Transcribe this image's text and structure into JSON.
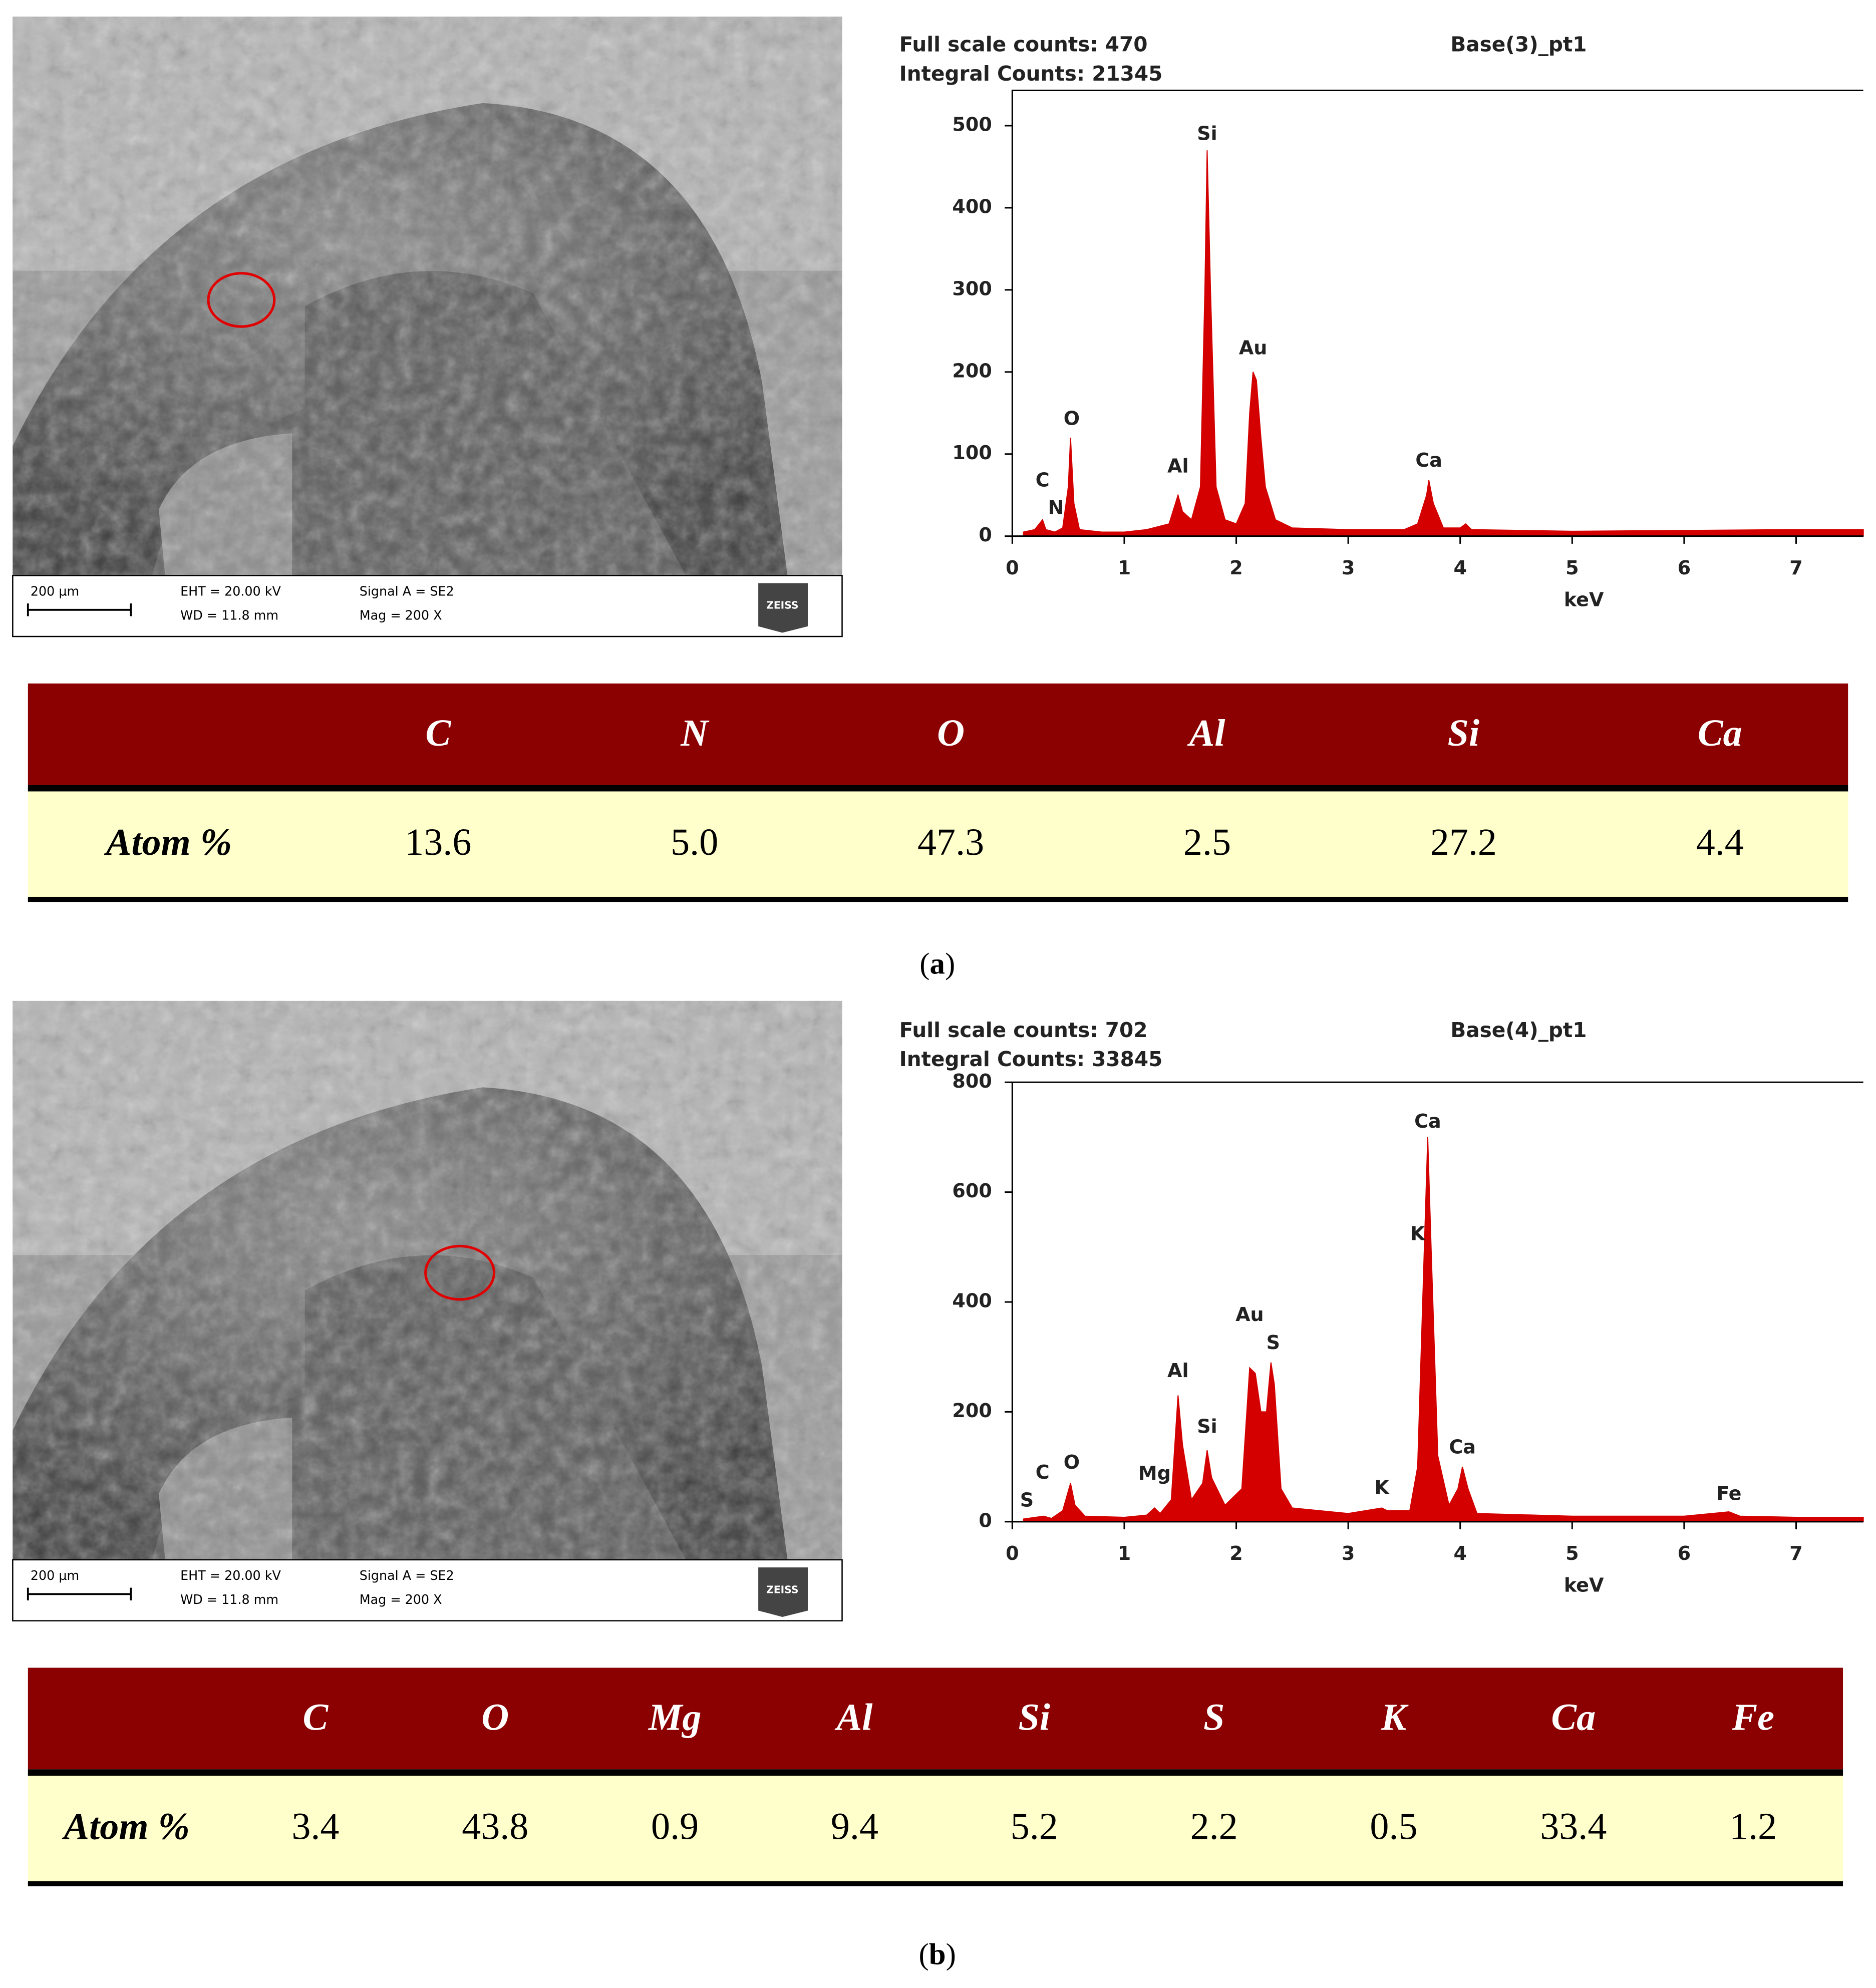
{
  "panels": [
    {
      "sem": {
        "scale": "200 µm",
        "eht": "EHT = 20.00 kV",
        "wd": "WD = 11.8 mm",
        "signal": "Signal A = SE2",
        "mag": "Mag =   200 X",
        "logo": "ZEISS"
      },
      "table": {
        "header": [
          "C",
          "N",
          "O",
          "Al",
          "Si",
          "Ca"
        ],
        "row_label": "Atom %",
        "row": [
          "13.6",
          "5.0",
          "47.3",
          "2.5",
          "27.2",
          "4.4"
        ]
      },
      "caption": {
        "open": "(",
        "letter": "a",
        "close": ")"
      }
    },
    {
      "sem": {
        "scale": "200 µm",
        "eht": "EHT = 20.00 kV",
        "wd": "WD = 11.8 mm",
        "signal": "Signal A = SE2",
        "mag": "Mag =   200 X",
        "logo": "ZEISS"
      },
      "table": {
        "header": [
          "C",
          "O",
          "Mg",
          "Al",
          "Si",
          "S",
          "K",
          "Ca",
          "Fe"
        ],
        "row_label": "Atom %",
        "row": [
          "3.4",
          "43.8",
          "0.9",
          "9.4",
          "5.2",
          "2.2",
          "0.5",
          "33.4",
          "1.2"
        ]
      },
      "caption": {
        "open": "(",
        "letter": "b",
        "close": ")"
      }
    }
  ],
  "chart_data": [
    {
      "type": "area",
      "title": "Base(3)_pt1",
      "subtitle": [
        "Full scale counts: 470",
        "Integral Counts: 21345"
      ],
      "xlabel": "keV",
      "color": "#d40000",
      "x": [
        0.1,
        0.2,
        0.27,
        0.3,
        0.38,
        0.45,
        0.5,
        0.52,
        0.55,
        0.6,
        0.8,
        1.0,
        1.2,
        1.4,
        1.48,
        1.52,
        1.6,
        1.68,
        1.72,
        1.74,
        1.77,
        1.82,
        1.9,
        2.0,
        2.08,
        2.12,
        2.15,
        2.18,
        2.22,
        2.26,
        2.35,
        2.5,
        3.0,
        3.5,
        3.62,
        3.7,
        3.72,
        3.76,
        3.85,
        4.0,
        4.05,
        4.1,
        5.0,
        6.0,
        7.0,
        7.6
      ],
      "values": [
        5,
        8,
        20,
        8,
        5,
        10,
        60,
        120,
        40,
        8,
        5,
        5,
        8,
        15,
        50,
        30,
        20,
        60,
        300,
        470,
        300,
        60,
        20,
        15,
        40,
        150,
        200,
        190,
        120,
        60,
        20,
        10,
        8,
        8,
        15,
        50,
        68,
        40,
        10,
        10,
        15,
        8,
        6,
        7,
        8,
        8
      ],
      "xlim": [
        0,
        7.6
      ],
      "ylim": [
        0,
        543
      ],
      "xticks": [
        0,
        1,
        2,
        3,
        4,
        5,
        6,
        7
      ],
      "yticks": [
        0,
        100,
        200,
        300,
        400,
        500
      ],
      "annotations": [
        {
          "text": "Si",
          "x": 1.74,
          "y": 489
        },
        {
          "text": "Au",
          "x": 2.15,
          "y": 228
        },
        {
          "text": "O",
          "x": 0.53,
          "y": 142
        },
        {
          "text": "Al",
          "x": 1.48,
          "y": 84
        },
        {
          "text": "Ca",
          "x": 3.72,
          "y": 91
        },
        {
          "text": "C",
          "x": 0.27,
          "y": 67
        },
        {
          "text": "N",
          "x": 0.39,
          "y": 33
        }
      ]
    },
    {
      "type": "area",
      "title": "Base(4)_pt1",
      "subtitle": [
        "Full scale counts: 702",
        "Integral Counts: 33845"
      ],
      "xlabel": "keV",
      "color": "#d40000",
      "x": [
        0.1,
        0.28,
        0.35,
        0.45,
        0.52,
        0.56,
        0.65,
        1.0,
        1.2,
        1.27,
        1.32,
        1.42,
        1.48,
        1.52,
        1.6,
        1.7,
        1.74,
        1.78,
        1.9,
        2.05,
        2.12,
        2.17,
        2.22,
        2.27,
        2.31,
        2.34,
        2.4,
        2.5,
        3.0,
        3.3,
        3.35,
        3.55,
        3.62,
        3.68,
        3.71,
        3.74,
        3.8,
        3.9,
        3.98,
        4.02,
        4.07,
        4.15,
        5.0,
        6.0,
        6.4,
        6.5,
        7.0,
        7.6
      ],
      "values": [
        5,
        10,
        6,
        20,
        70,
        30,
        10,
        8,
        12,
        25,
        15,
        40,
        230,
        140,
        40,
        70,
        130,
        80,
        30,
        60,
        280,
        270,
        200,
        200,
        290,
        250,
        60,
        25,
        15,
        25,
        20,
        20,
        100,
        500,
        700,
        500,
        120,
        30,
        60,
        100,
        60,
        15,
        10,
        10,
        18,
        10,
        8,
        8
      ],
      "xlim": [
        0,
        7.6
      ],
      "ylim": [
        0,
        800
      ],
      "xticks": [
        0,
        1,
        2,
        3,
        4,
        5,
        6,
        7
      ],
      "yticks": [
        0,
        200,
        400,
        600,
        800
      ],
      "annotations": [
        {
          "text": "Ca",
          "x": 3.71,
          "y": 727
        },
        {
          "text": "K",
          "x": 3.62,
          "y": 522
        },
        {
          "text": "Au",
          "x": 2.12,
          "y": 375
        },
        {
          "text": "S",
          "x": 2.33,
          "y": 324
        },
        {
          "text": "Al",
          "x": 1.48,
          "y": 273
        },
        {
          "text": "Si",
          "x": 1.74,
          "y": 171
        },
        {
          "text": "Mg",
          "x": 1.27,
          "y": 86
        },
        {
          "text": "O",
          "x": 0.53,
          "y": 106
        },
        {
          "text": "C",
          "x": 0.27,
          "y": 88
        },
        {
          "text": "S",
          "x": 0.13,
          "y": 37
        },
        {
          "text": "K",
          "x": 3.3,
          "y": 60
        },
        {
          "text": "Ca",
          "x": 4.02,
          "y": 134
        },
        {
          "text": "Fe",
          "x": 6.4,
          "y": 49
        }
      ]
    }
  ]
}
